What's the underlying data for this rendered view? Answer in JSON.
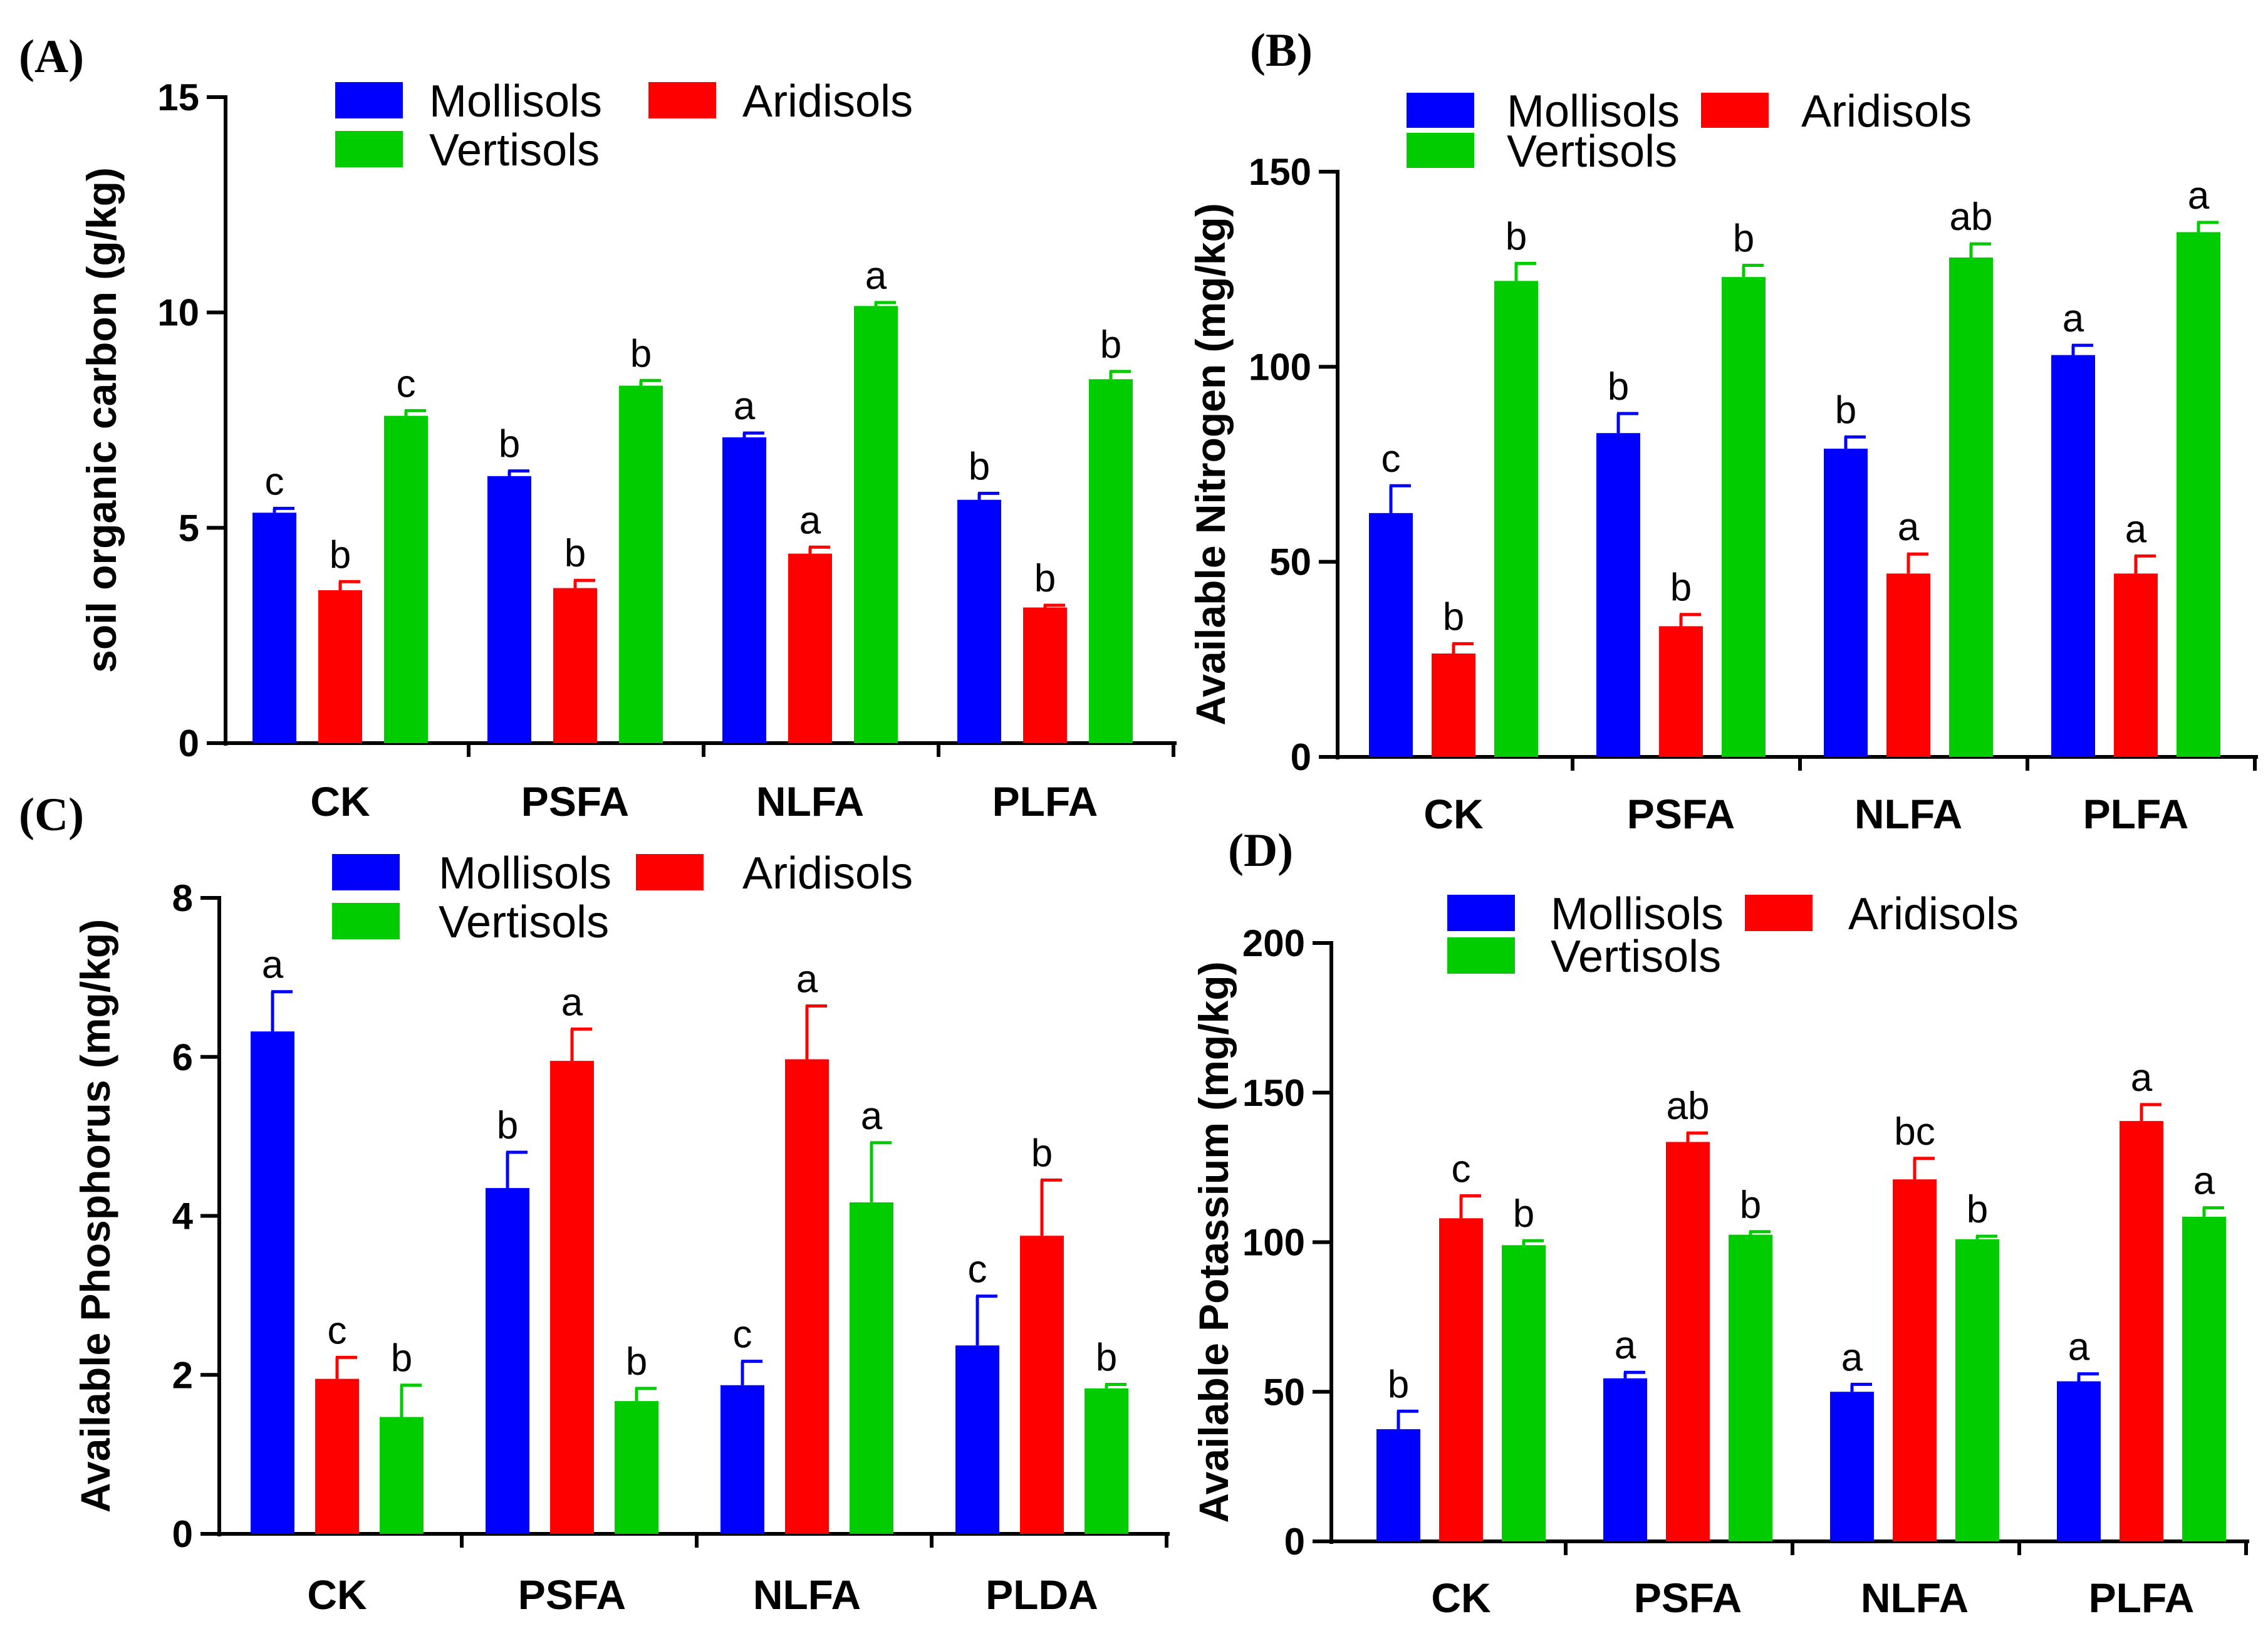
{
  "colors": {
    "Mollisols": "#0000ff",
    "Aridisols": "#ff0000",
    "Vertisols": "#00cc00"
  },
  "chart_data": [
    {
      "panel": "(A)",
      "type": "bar",
      "ylabel": "soil organic carbon (g/kg)",
      "ylim": [
        0,
        15
      ],
      "yticks": [
        0,
        5,
        10,
        15
      ],
      "categories": [
        "CK",
        "PSFA",
        "NLFA",
        "PLFA"
      ],
      "series": [
        {
          "name": "Mollisols",
          "values": [
            5.35,
            6.2,
            7.1,
            5.65
          ],
          "errors": [
            0.1,
            0.12,
            0.1,
            0.15
          ],
          "letters": [
            "c",
            "b",
            "a",
            "b"
          ]
        },
        {
          "name": "Aridisols",
          "values": [
            3.55,
            3.6,
            4.4,
            3.15
          ],
          "errors": [
            0.2,
            0.18,
            0.15,
            0.05
          ],
          "letters": [
            "b",
            "b",
            "a",
            "b"
          ]
        },
        {
          "name": "Vertisols",
          "values": [
            7.6,
            8.3,
            10.15,
            8.45
          ],
          "errors": [
            0.12,
            0.12,
            0.08,
            0.18
          ],
          "letters": [
            "c",
            "b",
            "a",
            "b"
          ]
        }
      ]
    },
    {
      "panel": "(B)",
      "type": "bar",
      "ylabel": "Available Nitrogen (mg/kg)",
      "ylim": [
        0,
        150
      ],
      "yticks": [
        0,
        50,
        100,
        150
      ],
      "categories": [
        "CK",
        "PSFA",
        "NLFA",
        "PLFA"
      ],
      "series": [
        {
          "name": "Mollisols",
          "values": [
            62.5,
            83,
            79,
            103
          ],
          "errors": [
            7,
            5,
            3,
            2.5
          ],
          "letters": [
            "c",
            "b",
            "b",
            "a"
          ]
        },
        {
          "name": "Aridisols",
          "values": [
            26.5,
            33.5,
            47,
            47
          ],
          "errors": [
            2.5,
            3,
            5,
            4.5
          ],
          "letters": [
            "b",
            "b",
            "a",
            "a"
          ]
        },
        {
          "name": "Vertisols",
          "values": [
            122,
            123,
            128,
            134.5
          ],
          "errors": [
            4.5,
            3,
            3.5,
            2.5
          ],
          "letters": [
            "b",
            "b",
            "ab",
            "a"
          ]
        }
      ]
    },
    {
      "panel": "(C)",
      "type": "bar",
      "ylabel": "Available Phosphorus (mg/kg)",
      "ylim": [
        0,
        8
      ],
      "yticks": [
        0,
        2,
        4,
        6,
        8
      ],
      "categories": [
        "CK",
        "PSFA",
        "NLFA",
        "PLDA"
      ],
      "series": [
        {
          "name": "Mollisols",
          "values": [
            6.32,
            4.35,
            1.87,
            2.37
          ],
          "errors": [
            0.5,
            0.45,
            0.3,
            0.62
          ],
          "letters": [
            "a",
            "b",
            "c",
            "c"
          ]
        },
        {
          "name": "Aridisols",
          "values": [
            1.95,
            5.95,
            5.97,
            3.75
          ],
          "errors": [
            0.27,
            0.4,
            0.67,
            0.7
          ],
          "letters": [
            "c",
            "a",
            "a",
            "b"
          ]
        },
        {
          "name": "Vertisols",
          "values": [
            1.47,
            1.67,
            4.17,
            1.83
          ],
          "errors": [
            0.4,
            0.16,
            0.75,
            0.05
          ],
          "letters": [
            "b",
            "b",
            "a",
            "b"
          ]
        }
      ]
    },
    {
      "panel": "(D)",
      "type": "bar",
      "ylabel": "Available Potassium (mg/kg)",
      "ylim": [
        0,
        200
      ],
      "yticks": [
        0,
        50,
        100,
        150,
        200
      ],
      "categories": [
        "CK",
        "PSFA",
        "NLFA",
        "PLFA"
      ],
      "series": [
        {
          "name": "Mollisols",
          "values": [
            37.5,
            54.5,
            50,
            53.5
          ],
          "errors": [
            6,
            2,
            2.5,
            2.5
          ],
          "letters": [
            "b",
            "a",
            "a",
            "a"
          ]
        },
        {
          "name": "Aridisols",
          "values": [
            108,
            133.5,
            121,
            140.5
          ],
          "errors": [
            7.5,
            3,
            7,
            5.5
          ],
          "letters": [
            "c",
            "ab",
            "bc",
            "a"
          ]
        },
        {
          "name": "Vertisols",
          "values": [
            99,
            102.5,
            101,
            108.5
          ],
          "errors": [
            1.5,
            1,
            1,
            3
          ],
          "letters": [
            "b",
            "b",
            "b",
            "a"
          ]
        }
      ]
    }
  ]
}
